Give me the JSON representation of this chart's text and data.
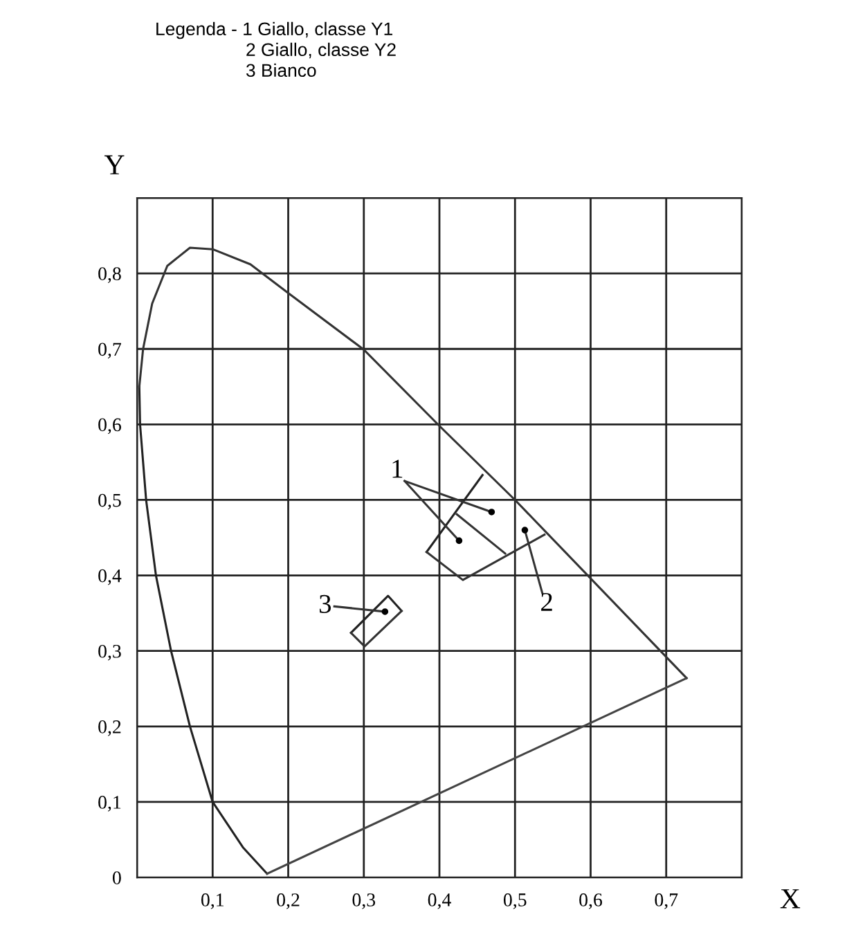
{
  "chart_data": {
    "type": "line",
    "xlabel": "X",
    "ylabel": "Y",
    "annotations": [
      "Legenda - 1 Giallo, classe Y1",
      "2 Giallo, classe Y2",
      "3 Bianco",
      "1",
      "2",
      "3"
    ],
    "xlim": [
      0,
      0.8
    ],
    "ylim": [
      0,
      0.9
    ],
    "xticks": [
      {
        "value": 0,
        "label": null
      },
      {
        "value": 0.1,
        "label": "0,1"
      },
      {
        "value": 0.2,
        "label": "0,2"
      },
      {
        "value": 0.3,
        "label": "0,3"
      },
      {
        "value": 0.4,
        "label": "0,4"
      },
      {
        "value": 0.5,
        "label": "0,5"
      },
      {
        "value": 0.6,
        "label": "0,6"
      },
      {
        "value": 0.7,
        "label": "0,7"
      },
      {
        "value": 0.8,
        "label": null
      }
    ],
    "yticks": [
      {
        "value": 0,
        "label": "0"
      },
      {
        "value": 0.1,
        "label": "0,1"
      },
      {
        "value": 0.2,
        "label": "0,2"
      },
      {
        "value": 0.3,
        "label": "0,3"
      },
      {
        "value": 0.4,
        "label": "0,4"
      },
      {
        "value": 0.5,
        "label": "0,5"
      },
      {
        "value": 0.6,
        "label": "0,6"
      },
      {
        "value": 0.7,
        "label": "0,7"
      },
      {
        "value": 0.8,
        "label": "0,8"
      },
      {
        "value": 0.9,
        "label": null
      }
    ],
    "grid": true,
    "marker": "none",
    "line_style": "solid",
    "series": [
      {
        "color": "#222222",
        "x": [
          0.003,
          0.004,
          0.012,
          0.025,
          0.045,
          0.07,
          0.1,
          0.14,
          0.172
        ],
        "values": [
          0.65,
          0.6,
          0.5,
          0.4,
          0.3,
          0.2,
          0.1,
          0.04,
          0.005
        ]
      },
      {
        "color": "#333333",
        "x": [
          0.003,
          0.008,
          0.02,
          0.04,
          0.07,
          0.1,
          0.15,
          0.2,
          0.3,
          0.4,
          0.5,
          0.727
        ],
        "values": [
          0.65,
          0.7,
          0.76,
          0.81,
          0.834,
          0.832,
          0.812,
          0.774,
          0.699,
          0.598,
          0.5,
          0.264
        ]
      },
      {
        "color": "#444444",
        "x": [
          0.172,
          0.727
        ],
        "values": [
          0.005,
          0.264
        ]
      },
      {
        "color": "#222222",
        "x": [
          0.383,
          0.457
        ],
        "values": [
          0.431,
          0.533
        ]
      },
      {
        "color": "#333333",
        "x": [
          0.383,
          0.431,
          0.539
        ],
        "values": [
          0.431,
          0.394,
          0.454
        ]
      },
      {
        "color": "#333333",
        "x": [
          0.423,
          0.487
        ],
        "values": [
          0.481,
          0.429
        ]
      },
      {
        "color": "#222222",
        "x": [
          0.283,
          0.332,
          0.35
        ],
        "values": [
          0.324,
          0.373,
          0.353
        ]
      },
      {
        "color": "#333333",
        "x": [
          0.283,
          0.301,
          0.35
        ],
        "values": [
          0.324,
          0.306,
          0.353
        ]
      },
      {
        "color": "#333333",
        "x": [
          0.354,
          0.426
        ],
        "values": [
          0.525,
          0.446
        ]
      },
      {
        "color": "#333333",
        "x": [
          0.354,
          0.469
        ],
        "values": [
          0.525,
          0.484
        ]
      },
      {
        "color": "#333333",
        "x": [
          0.513,
          0.536
        ],
        "values": [
          0.46,
          0.377
        ]
      },
      {
        "color": "#333333",
        "x": [
          0.261,
          0.328
        ],
        "values": [
          0.359,
          0.352
        ]
      },
      {
        "type": "scatter",
        "color": "#000000",
        "x": [
          0.426,
          0.469,
          0.513,
          0.328
        ],
        "values": [
          0.446,
          0.484,
          0.46,
          0.352
        ]
      }
    ]
  }
}
